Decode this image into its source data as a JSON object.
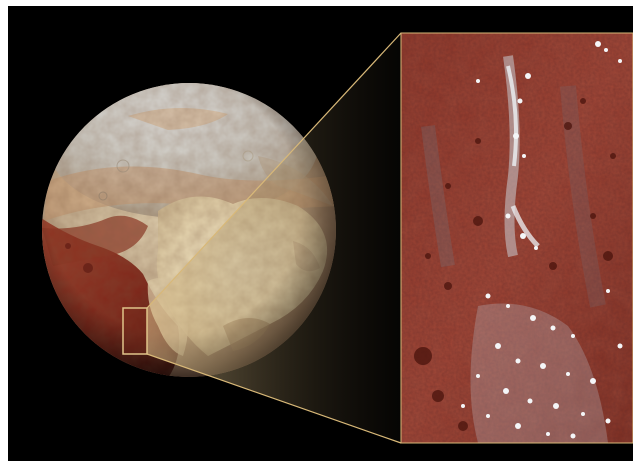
{
  "image": {
    "subject": "planet-with-inset",
    "icons": [
      "planet-globe-icon",
      "zoom-inset-icon"
    ],
    "colors": {
      "background": "#000000",
      "frame": "#ffffff",
      "planet_light": "#e8d9b8",
      "planet_red": "#8a2a1c",
      "inset_red": "#9c3a2a",
      "ice": "#dfe6ee",
      "callout": "#d8b878"
    }
  }
}
